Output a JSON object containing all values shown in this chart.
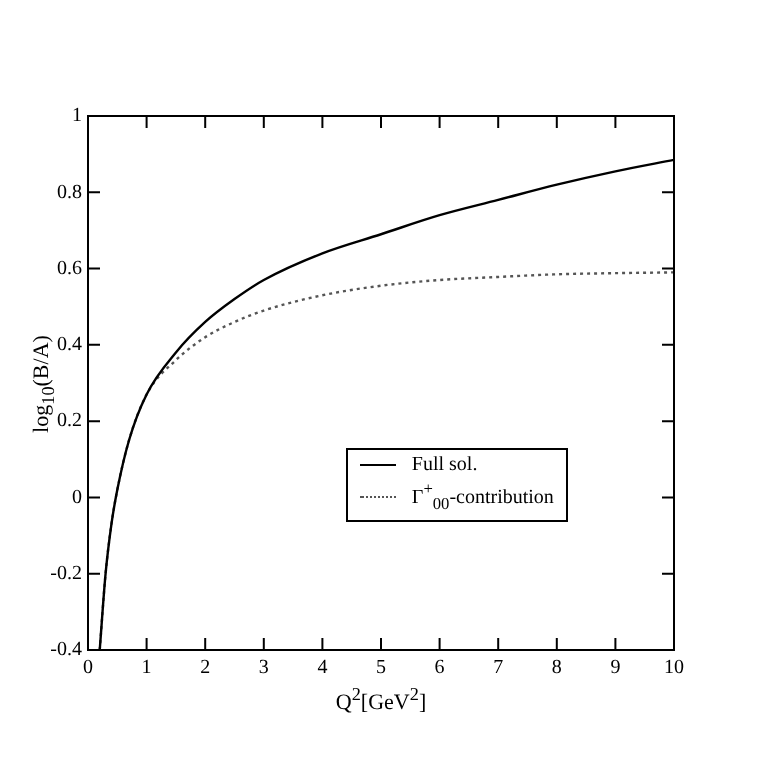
{
  "chart_data": {
    "type": "line",
    "xlabel": "Q$^{2}$[GeV$^{2}$]",
    "ylabel": "log$_{10}$(B/A)",
    "xlim": [
      0,
      10
    ],
    "xticks": [
      0,
      1,
      2,
      3,
      4,
      5,
      6,
      7,
      8,
      9,
      10
    ],
    "ylim": [
      -0.4,
      1
    ],
    "yticks": [
      -0.4,
      -0.2,
      0,
      0.2,
      0.4,
      0.6,
      0.8,
      1
    ],
    "grid": false,
    "legend": "right",
    "marker": "none",
    "series": [
      {
        "name": "Full sol.",
        "color": "#000000",
        "line_style": "solid",
        "x": [
          0.2,
          0.3,
          0.4,
          0.5,
          0.7,
          1,
          1.5,
          2,
          2.5,
          3,
          4,
          5,
          6,
          7,
          8,
          9,
          10
        ],
        "values": [
          -0.4,
          -0.2,
          -0.07,
          0.02,
          0.15,
          0.27,
          0.38,
          0.46,
          0.52,
          0.57,
          0.64,
          0.69,
          0.74,
          0.78,
          0.82,
          0.855,
          0.885
        ]
      },
      {
        "name": "Γ$^{+}$$_{00}$-contribution",
        "color": "#555555",
        "line_style": "dotted",
        "x": [
          0.2,
          0.3,
          0.4,
          0.5,
          0.7,
          1,
          1.5,
          2,
          2.5,
          3,
          4,
          5,
          6,
          7,
          8,
          9,
          10
        ],
        "values": [
          -0.4,
          -0.2,
          -0.07,
          0.02,
          0.15,
          0.27,
          0.36,
          0.42,
          0.46,
          0.49,
          0.53,
          0.555,
          0.57,
          0.578,
          0.585,
          0.588,
          0.59
        ]
      }
    ]
  }
}
